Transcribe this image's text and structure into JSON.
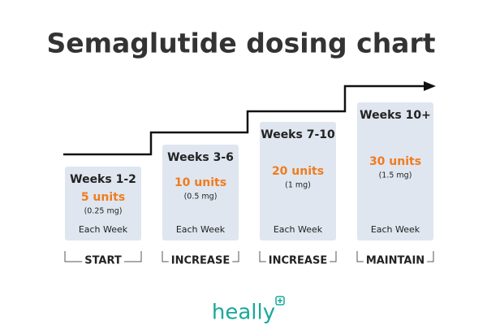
{
  "title": "Semaglutide dosing chart",
  "steps": [
    {
      "weeks": "Weeks 1-2",
      "dose": "5 units",
      "mg": "(0.25 mg)",
      "frequency": "Each Week",
      "phase": "START"
    },
    {
      "weeks": "Weeks 3-6",
      "dose": "10 units",
      "mg": "(0.5 mg)",
      "frequency": "Each Week",
      "phase": "INCREASE"
    },
    {
      "weeks": "Weeks 7-10",
      "dose": "20 units",
      "mg": "(1 mg)",
      "frequency": "Each Week",
      "phase": "INCREASE"
    },
    {
      "weeks": "Weeks 10+",
      "dose": "30 units",
      "mg": "(1.5 mg)",
      "frequency": "Each Week",
      "phase": "MAINTAIN"
    }
  ],
  "logo": "heally"
}
